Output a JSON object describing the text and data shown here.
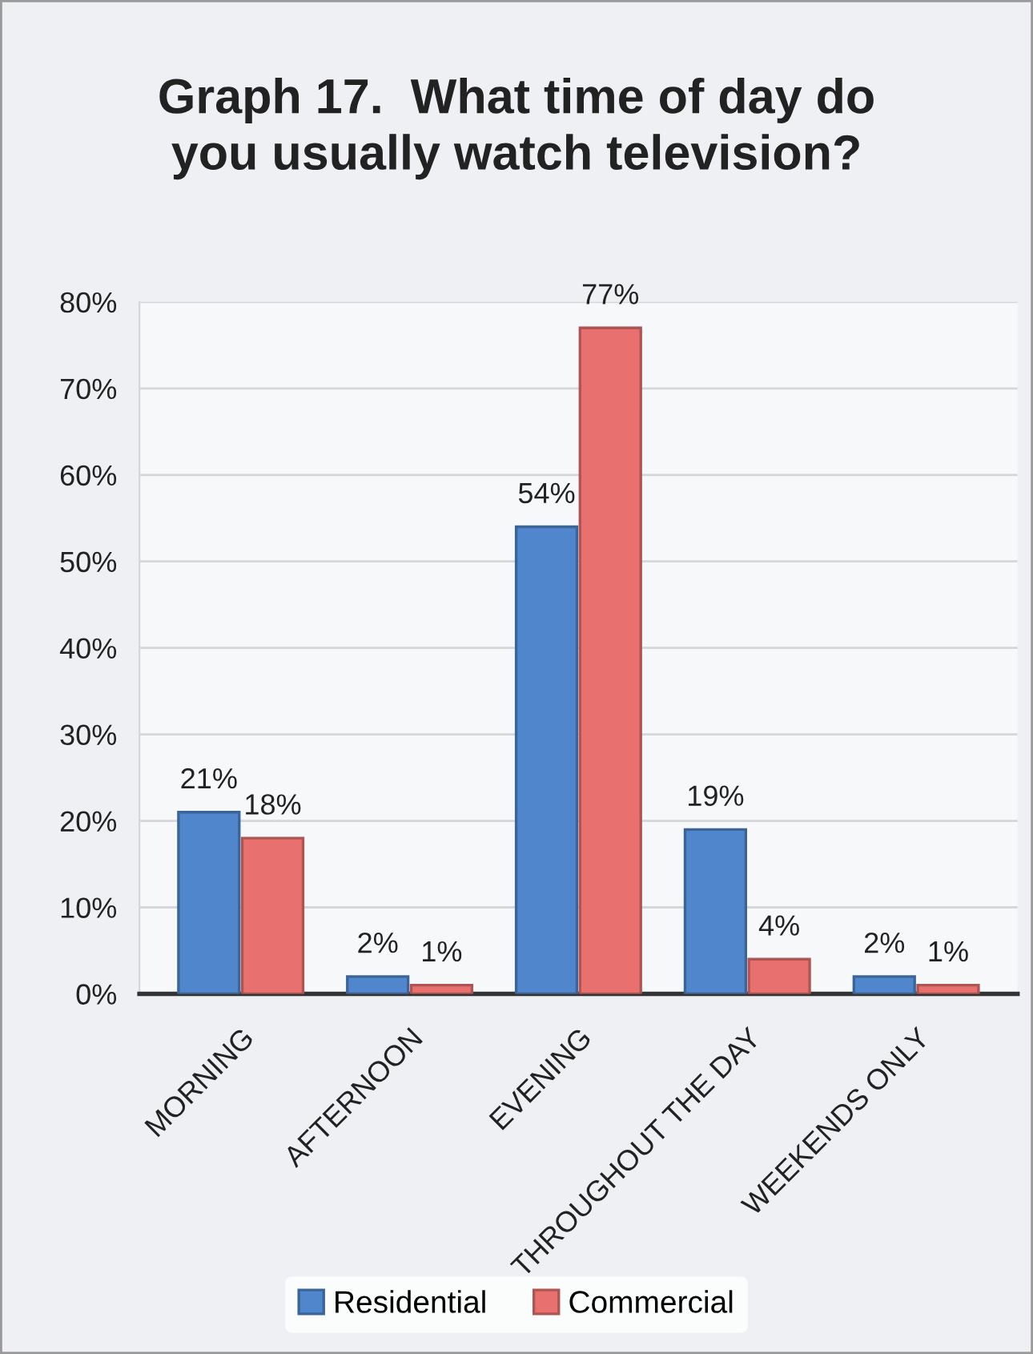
{
  "chart_data": {
    "type": "bar",
    "title": "Graph 17.  What time of day do\nyou usually watch television?",
    "categories": [
      "MORNING",
      "AFTERNOON",
      "EVENING",
      "THROUGHOUT THE DAY",
      "WEEKENDS ONLY"
    ],
    "series": [
      {
        "name": "Residential",
        "color": "#4f86cc",
        "values": [
          21,
          2,
          54,
          19,
          2
        ],
        "value_labels": [
          "21%",
          "2%",
          "54%",
          "19%",
          "2%"
        ]
      },
      {
        "name": "Commercial",
        "color": "#e8716f",
        "values": [
          18,
          1,
          77,
          4,
          1
        ],
        "value_labels": [
          "18%",
          "1%",
          "77%",
          "4%",
          "1%"
        ]
      }
    ],
    "ylim": [
      0,
      80
    ],
    "yticks": [
      {
        "value": 0,
        "label": "0%"
      },
      {
        "value": 10,
        "label": "10%"
      },
      {
        "value": 20,
        "label": "20%"
      },
      {
        "value": 30,
        "label": "30%"
      },
      {
        "value": 40,
        "label": "40%"
      },
      {
        "value": 50,
        "label": "50%"
      },
      {
        "value": 60,
        "label": "60%"
      },
      {
        "value": 70,
        "label": "70%"
      },
      {
        "value": 80,
        "label": "80%"
      }
    ],
    "grid": "y",
    "legend": "bottom"
  }
}
